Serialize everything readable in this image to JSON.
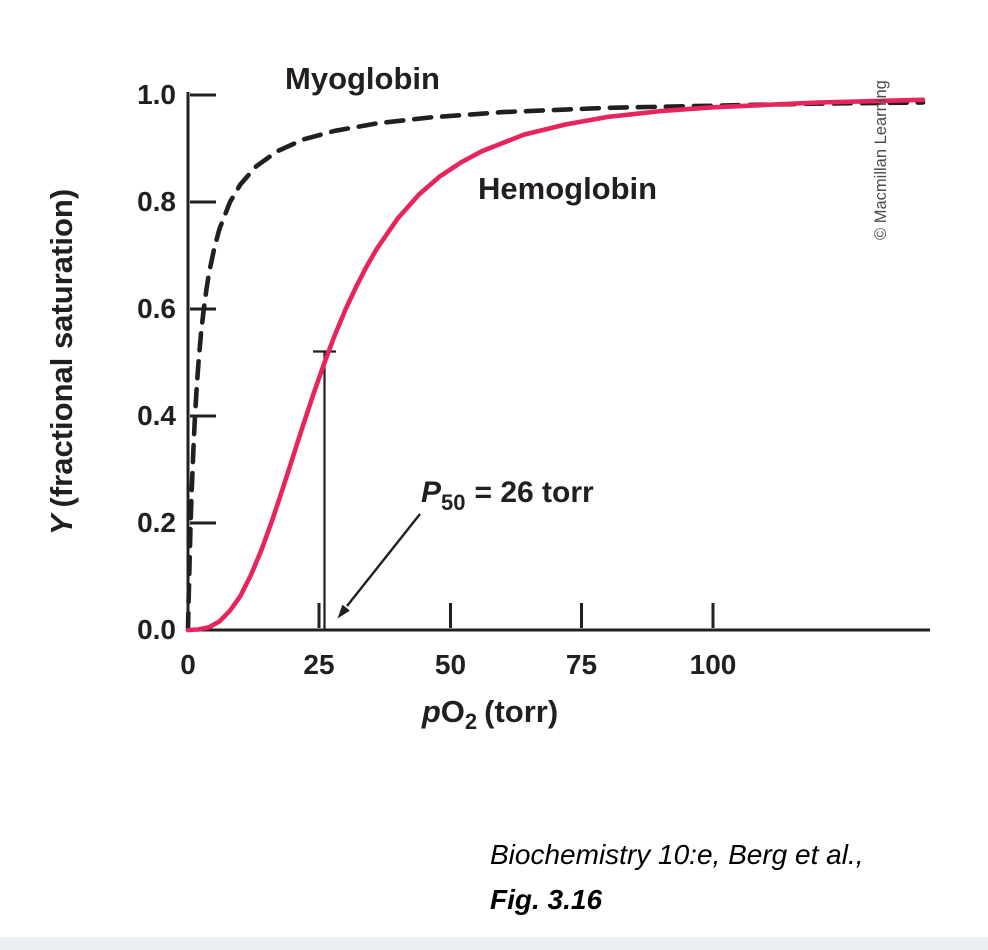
{
  "figure": {
    "watermark": "© Macmillan Learning",
    "caption_line1": "Biochemistry 10:e, Berg et al.,",
    "caption_line2": "Fig. 3.16"
  },
  "chart_data": {
    "type": "line",
    "xlabel": "pO2 (torr)",
    "ylabel": "Y (fractional saturation)",
    "xlim": [
      0,
      140
    ],
    "ylim": [
      0,
      1.0
    ],
    "grid": false,
    "legend": "inline-labels",
    "x_ticks": [
      0,
      25,
      50,
      75,
      100
    ],
    "x_tick_labels": [
      "0",
      "25",
      "50",
      "75",
      "100"
    ],
    "y_ticks": [
      0,
      0.2,
      0.4,
      0.6,
      0.8,
      1.0
    ],
    "y_tick_labels": [
      "0.0",
      "0.2",
      "0.4",
      "0.6",
      "0.8",
      "1.0"
    ],
    "x_axis_label_parts": {
      "p": "p",
      "O": "O",
      "sub": "2",
      "unit": "(torr)"
    },
    "y_axis_label_parts": {
      "symbol": "Y",
      "rest": "(fractional saturation)"
    },
    "annotation": {
      "p_symbol": "P",
      "p_sub": "50",
      "value_text": "= 26 torr",
      "x": 26,
      "y": 0.5
    },
    "series": [
      {
        "name": "Myoglobin",
        "style": "dashed",
        "color": "#231f20",
        "points": [
          [
            0,
            0
          ],
          [
            0.1,
            0.048
          ],
          [
            0.2,
            0.091
          ],
          [
            0.3,
            0.13
          ],
          [
            0.5,
            0.2
          ],
          [
            0.7,
            0.259
          ],
          [
            1,
            0.333
          ],
          [
            1.3,
            0.394
          ],
          [
            1.7,
            0.459
          ],
          [
            2,
            0.5
          ],
          [
            2.5,
            0.556
          ],
          [
            3,
            0.6
          ],
          [
            3.5,
            0.636
          ],
          [
            4,
            0.667
          ],
          [
            5,
            0.714
          ],
          [
            6,
            0.75
          ],
          [
            8,
            0.8
          ],
          [
            10,
            0.833
          ],
          [
            13,
            0.867
          ],
          [
            17,
            0.895
          ],
          [
            22,
            0.917
          ],
          [
            28,
            0.933
          ],
          [
            36,
            0.947
          ],
          [
            46,
            0.958
          ],
          [
            60,
            0.968
          ],
          [
            80,
            0.976
          ],
          [
            100,
            0.98
          ],
          [
            120,
            0.984
          ],
          [
            140,
            0.986
          ]
        ]
      },
      {
        "name": "Hemoglobin",
        "style": "solid",
        "color": "#e8245c",
        "points": [
          [
            0,
            0
          ],
          [
            2,
            0.001
          ],
          [
            4,
            0.005
          ],
          [
            6,
            0.016
          ],
          [
            8,
            0.036
          ],
          [
            10,
            0.064
          ],
          [
            12,
            0.103
          ],
          [
            14,
            0.15
          ],
          [
            16,
            0.204
          ],
          [
            18,
            0.263
          ],
          [
            20,
            0.324
          ],
          [
            22,
            0.385
          ],
          [
            24,
            0.444
          ],
          [
            26,
            0.5
          ],
          [
            28,
            0.552
          ],
          [
            30,
            0.599
          ],
          [
            32,
            0.641
          ],
          [
            34,
            0.679
          ],
          [
            36,
            0.713
          ],
          [
            40,
            0.77
          ],
          [
            44,
            0.814
          ],
          [
            48,
            0.848
          ],
          [
            52,
            0.874
          ],
          [
            56,
            0.895
          ],
          [
            64,
            0.926
          ],
          [
            72,
            0.945
          ],
          [
            80,
            0.959
          ],
          [
            90,
            0.97
          ],
          [
            100,
            0.977
          ],
          [
            120,
            0.986
          ],
          [
            140,
            0.991
          ]
        ]
      }
    ]
  }
}
